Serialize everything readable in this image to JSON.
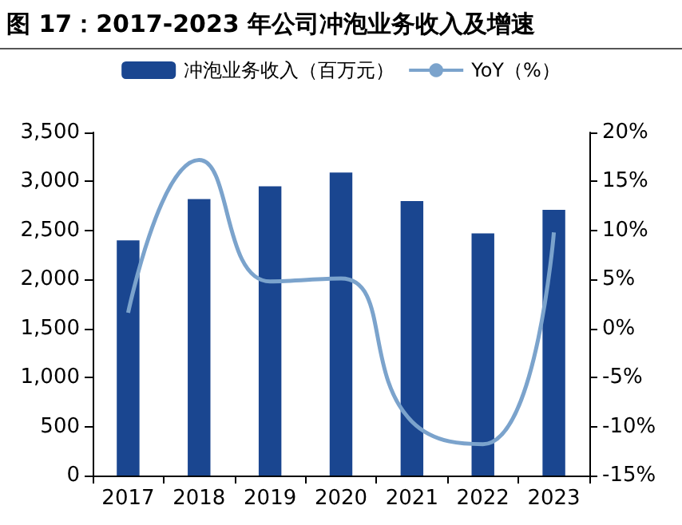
{
  "chart_data": {
    "type": "bar",
    "title": "图 17：2017-2023 年公司冲泡业务收入及增速",
    "categories": [
      "2017",
      "2018",
      "2019",
      "2020",
      "2021",
      "2022",
      "2023"
    ],
    "series": [
      {
        "name": "冲泡业务收入（百万元）",
        "color": "#1a4690",
        "values": [
          2400,
          2820,
          2950,
          3090,
          2800,
          2470,
          2710
        ]
      },
      {
        "name": "YoY（%）",
        "type": "line",
        "axis": "y2",
        "color": "#7ba3cc",
        "values": [
          1.6,
          17.2,
          4.8,
          5.1,
          -9.5,
          -11.8,
          9.8
        ]
      }
    ],
    "ylim": [
      0,
      3500
    ],
    "yticks": [
      0,
      500,
      {
        "value": 1000,
        "label": "1,000"
      },
      {
        "value": 1500,
        "label": "1,500"
      },
      {
        "value": 2000,
        "label": "2,000"
      },
      {
        "value": 2500,
        "label": "2,500"
      },
      {
        "value": 3000,
        "label": "3,000"
      },
      {
        "value": 3500,
        "label": "3,500"
      }
    ],
    "y2lim": [
      -15,
      20
    ],
    "y2ticks": [
      {
        "value": -15,
        "label": "-15%"
      },
      {
        "value": -10,
        "label": "-10%"
      },
      {
        "value": -5,
        "label": "-5%"
      },
      {
        "value": 0,
        "label": "0%"
      },
      {
        "value": 5,
        "label": "5%"
      },
      {
        "value": 10,
        "label": "10%"
      },
      {
        "value": 15,
        "label": "15%"
      },
      {
        "value": 20,
        "label": "20%"
      }
    ],
    "legend": "top",
    "grid": false,
    "marker": "none"
  }
}
